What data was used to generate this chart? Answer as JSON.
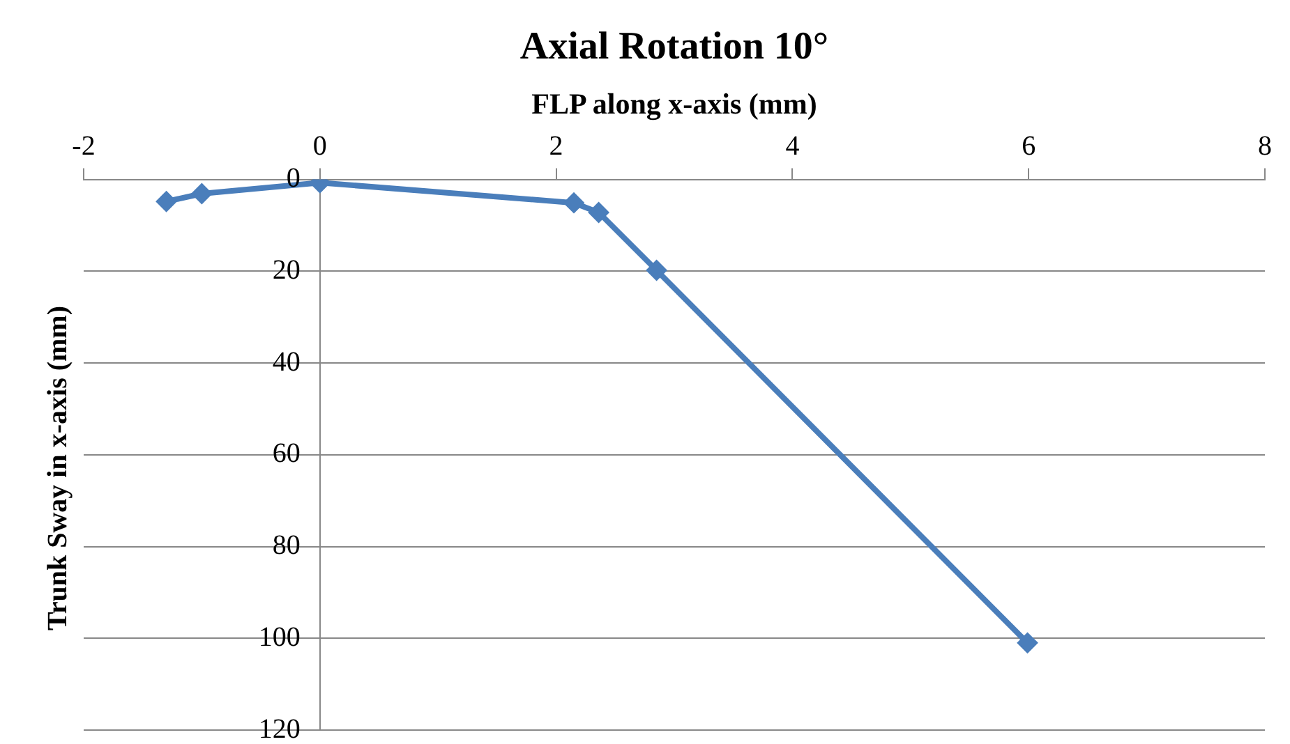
{
  "chart_data": {
    "type": "line",
    "title": "Axial Rotation 10°",
    "xlabel": "FLP along x-axis (mm)",
    "ylabel": "Trunk Sway in x-axis (mm)",
    "series": [
      {
        "color": "#4a7ebb",
        "x": [
          -1.3,
          -1,
          0,
          2.15,
          2.36,
          2.85,
          5.99
        ],
        "values": [
          4.8,
          3.1,
          0.7,
          5.1,
          7.2,
          19.8,
          101
        ]
      }
    ],
    "xlim": [
      -2,
      8
    ],
    "xticks": [
      -2,
      0,
      2,
      4,
      6,
      8
    ],
    "ylim": [
      120,
      0
    ],
    "yticks": [
      0,
      20,
      40,
      60,
      80,
      100,
      120
    ],
    "grid": "y",
    "legend": false,
    "marker": "diamond",
    "line_style": "solid"
  }
}
